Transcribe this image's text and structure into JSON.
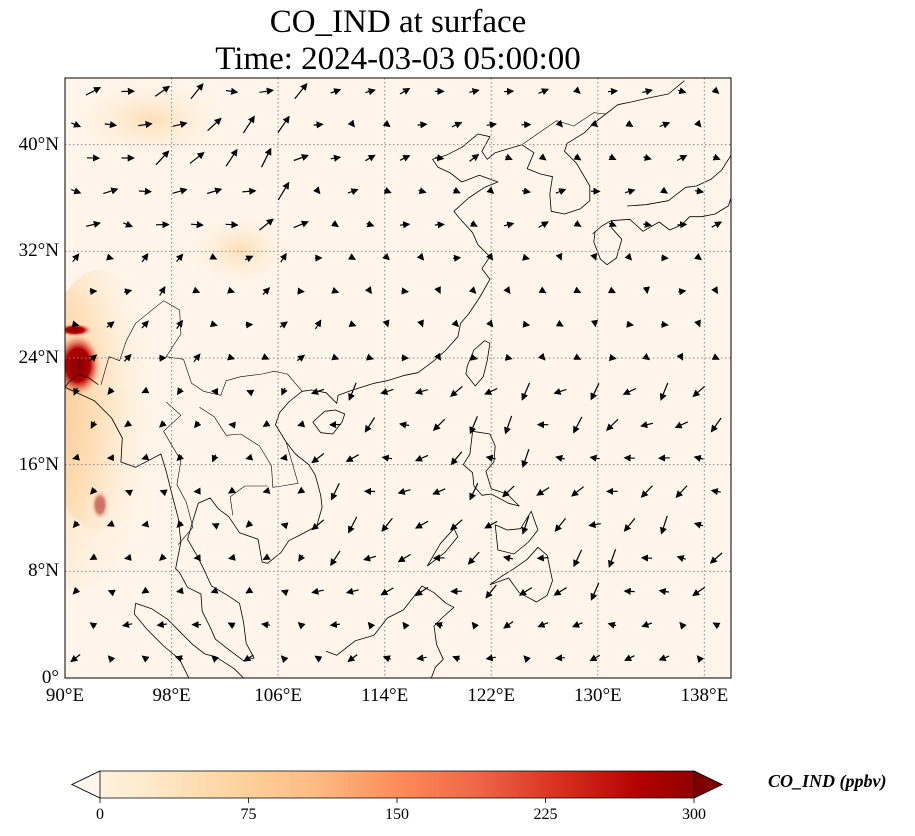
{
  "title": {
    "line1": "CO_IND at surface",
    "line2": "Time: 2024-03-03 05:00:00"
  },
  "map": {
    "projection": "PlateCarree",
    "lon_range": [
      90,
      140
    ],
    "lat_range": [
      0,
      45
    ],
    "x_ticks": [
      "90°E",
      "98°E",
      "106°E",
      "114°E",
      "122°E",
      "130°E",
      "138°E"
    ],
    "y_ticks": [
      "0°",
      "8°N",
      "16°N",
      "24°N",
      "32°N",
      "40°N"
    ],
    "gridlines": true,
    "gridline_style": "dotted",
    "coastlines": true,
    "borders": true,
    "wind_vectors": true
  },
  "colorbar": {
    "label": "CO_IND (ppbv)",
    "ticks": [
      "0",
      "75",
      "150",
      "225",
      "300"
    ],
    "vmin": 0,
    "vmax": 300,
    "colormap": "OrRd",
    "extend": "both",
    "colors": [
      "#fff7ec",
      "#fee8c8",
      "#fdd49e",
      "#fdbb84",
      "#fc8d59",
      "#ef6548",
      "#d7301f",
      "#b30000",
      "#7f0000"
    ]
  }
}
